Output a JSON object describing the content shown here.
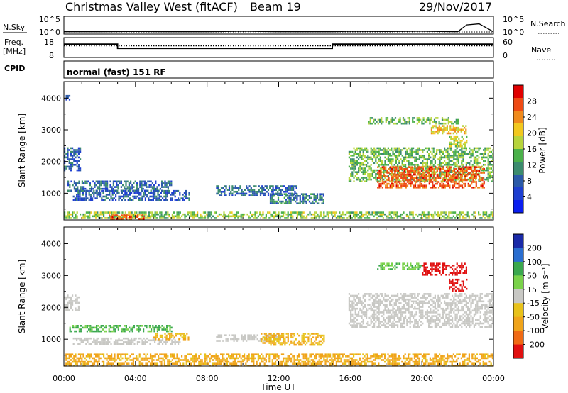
{
  "header": {
    "station": "Christmas Valley West (fitACF)",
    "beam": "Beam 19",
    "date": "29/Nov/2017"
  },
  "noise_panel": {
    "left_label": "N.Sky",
    "right_label": "N.Search",
    "left_ticks": [
      "10^5",
      "10^0"
    ],
    "right_ticks": [
      "10^5",
      "10^0"
    ]
  },
  "freq_panel": {
    "left_label_line1": "Freq.",
    "left_label_line2": "[MHz]",
    "right_label": "Nave",
    "left_ticks": [
      "18",
      "8"
    ],
    "right_ticks": [
      "60",
      "0"
    ]
  },
  "cpid": {
    "label": "CPID",
    "mode": "normal (fast) 151 RF"
  },
  "x_axis": {
    "label": "Time UT",
    "ticks": [
      "00:00",
      "04:00",
      "08:00",
      "12:00",
      "16:00",
      "20:00",
      "00:00"
    ]
  },
  "power_panel": {
    "ylabel": "Slant Range [km]",
    "colorbar_label": "Power [dB]",
    "colorbar_ticks": [
      "28",
      "24",
      "20",
      "16",
      "12",
      "8",
      "4"
    ]
  },
  "velocity_panel": {
    "ylabel": "Slant Range [km]",
    "colorbar_label": "Velocity [m s⁻¹]",
    "colorbar_ticks": [
      "200",
      "100",
      "50",
      "15",
      "-15",
      "-50",
      "-100",
      "-200"
    ]
  },
  "chart_data": [
    {
      "type": "line",
      "name": "noise",
      "x_range_hours": [
        0,
        24
      ],
      "y_scale": "log",
      "ylim": [
        1,
        100000
      ],
      "series": [
        {
          "x": [
            0,
            2,
            4,
            6,
            8,
            10,
            12,
            14,
            15,
            16,
            18,
            20,
            22,
            22.5,
            23.2,
            24
          ],
          "y": [
            2,
            2,
            2.5,
            2,
            2,
            3,
            2,
            2,
            2,
            3,
            2.5,
            3,
            2,
            400,
            900,
            2
          ]
        }
      ]
    },
    {
      "type": "line",
      "name": "frequency",
      "x_range_hours": [
        0,
        24
      ],
      "ylim": [
        8,
        18
      ],
      "series": [
        {
          "x": [
            0,
            3.0,
            3.0,
            15.0,
            15.0,
            24
          ],
          "y": [
            15,
            15,
            12.5,
            12.5,
            15,
            15
          ]
        },
        {
          "x": [
            0,
            24
          ],
          "y": [
            14,
            14
          ]
        }
      ]
    },
    {
      "type": "heatmap",
      "name": "power",
      "x_range_hours": [
        0,
        24
      ],
      "ylim": [
        180,
        4500
      ],
      "y_ticks": [
        1000,
        2000,
        3000,
        4000
      ],
      "colorbar_range": [
        0,
        30
      ],
      "regions": [
        {
          "t": [
            0.0,
            0.9
          ],
          "r": [
            1700,
            2450
          ],
          "v": 9
        },
        {
          "t": [
            0.1,
            0.35
          ],
          "r": [
            3950,
            4100
          ],
          "v": 8
        },
        {
          "t": [
            0.2,
            6.0
          ],
          "r": [
            1100,
            1400
          ],
          "v": 10
        },
        {
          "t": [
            0.5,
            7.0
          ],
          "r": [
            800,
            1100
          ],
          "v": 9
        },
        {
          "t": [
            8.5,
            13.0
          ],
          "r": [
            950,
            1250
          ],
          "v": 10
        },
        {
          "t": [
            11.5,
            14.5
          ],
          "r": [
            700,
            1000
          ],
          "v": 11
        },
        {
          "t": [
            0.0,
            24.0
          ],
          "r": [
            190,
            420
          ],
          "v": 17
        },
        {
          "t": [
            2.5,
            4.5
          ],
          "r": [
            190,
            330
          ],
          "v": 27
        },
        {
          "t": [
            15.9,
            24.0
          ],
          "r": [
            1350,
            2450
          ],
          "v": 16
        },
        {
          "t": [
            17.5,
            23.5
          ],
          "r": [
            1200,
            1850
          ],
          "v": 27
        },
        {
          "t": [
            17.0,
            22.0
          ],
          "r": [
            3200,
            3400
          ],
          "v": 16
        },
        {
          "t": [
            20.5,
            22.5
          ],
          "r": [
            2900,
            3150
          ],
          "v": 22
        },
        {
          "t": [
            21.5,
            22.5
          ],
          "r": [
            2500,
            2800
          ],
          "v": 19
        }
      ]
    },
    {
      "type": "heatmap",
      "name": "velocity",
      "x_range_hours": [
        0,
        24
      ],
      "ylim": [
        180,
        4500
      ],
      "y_ticks": [
        1000,
        2000,
        3000,
        4000
      ],
      "colorbar_range": [
        -200,
        200
      ],
      "regions": [
        {
          "t": [
            0.0,
            0.8
          ],
          "r": [
            1900,
            2400
          ],
          "v": 0
        },
        {
          "t": [
            0.3,
            6.0
          ],
          "r": [
            1250,
            1450
          ],
          "v": 35
        },
        {
          "t": [
            0.5,
            6.5
          ],
          "r": [
            850,
            1050
          ],
          "v": 0
        },
        {
          "t": [
            5.0,
            7.0
          ],
          "r": [
            1000,
            1200
          ],
          "v": -30
        },
        {
          "t": [
            8.5,
            12.0
          ],
          "r": [
            950,
            1150
          ],
          "v": 0
        },
        {
          "t": [
            11.0,
            14.5
          ],
          "r": [
            850,
            1200
          ],
          "v": -30
        },
        {
          "t": [
            0.0,
            24.0
          ],
          "r": [
            190,
            550
          ],
          "v": -40
        },
        {
          "t": [
            15.9,
            24.0
          ],
          "r": [
            1350,
            2450
          ],
          "v": 0
        },
        {
          "t": [
            17.5,
            20.0
          ],
          "r": [
            3200,
            3400
          ],
          "v": 30
        },
        {
          "t": [
            20.0,
            22.5
          ],
          "r": [
            3050,
            3400
          ],
          "v": -180
        },
        {
          "t": [
            21.5,
            22.5
          ],
          "r": [
            2500,
            2900
          ],
          "v": -180
        }
      ]
    }
  ]
}
